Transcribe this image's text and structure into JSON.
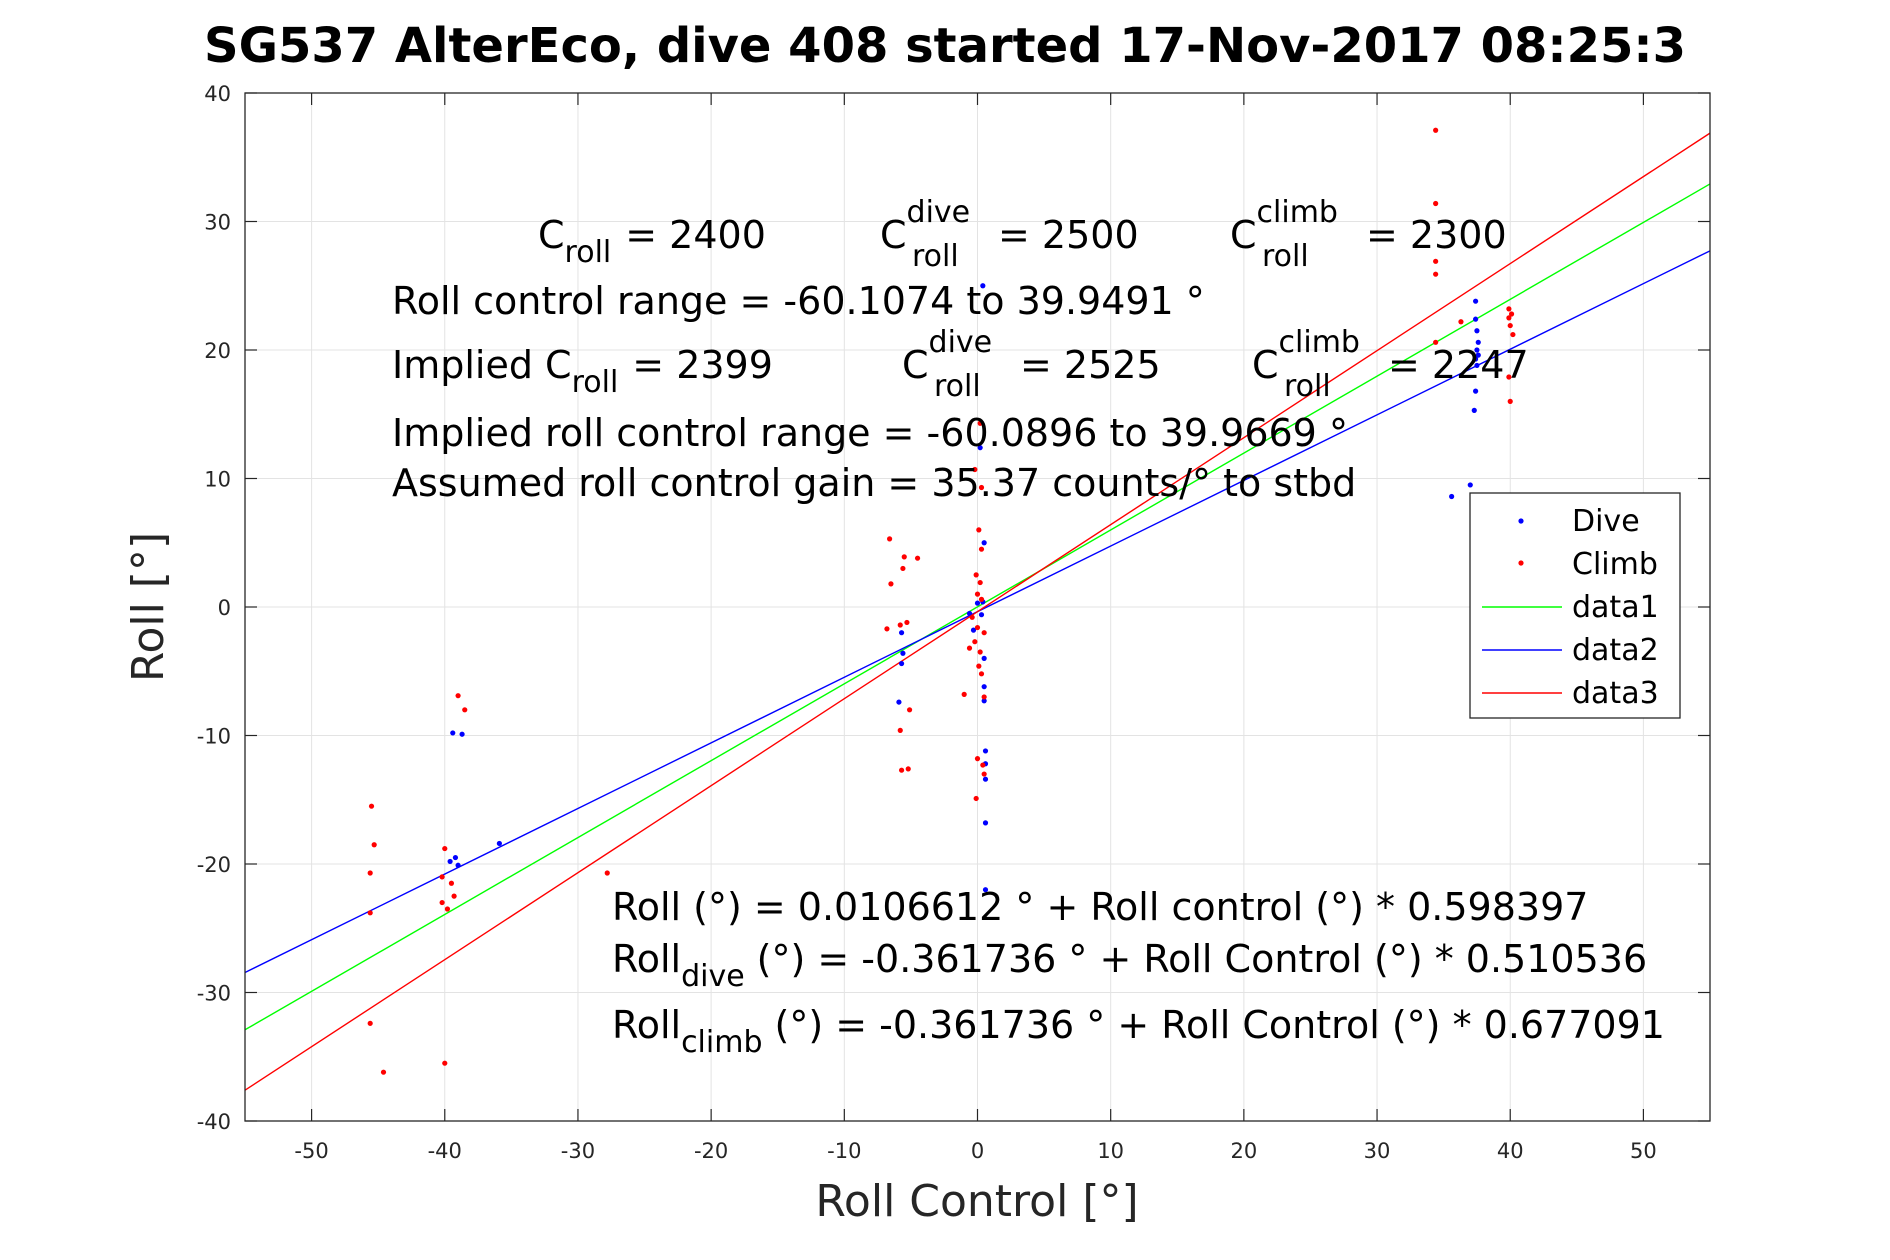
{
  "title": "SG537 AlterEco, dive 408 started 17-Nov-2017 08:25:3",
  "chart_data": {
    "type": "scatter",
    "xlabel": "Roll Control [°]",
    "ylabel": "Roll [°]",
    "xlim": [
      -55,
      55
    ],
    "ylim": [
      -40,
      40
    ],
    "xticks": [
      -50,
      -40,
      -30,
      -20,
      -10,
      0,
      10,
      20,
      30,
      40,
      50
    ],
    "yticks": [
      -40,
      -30,
      -20,
      -10,
      0,
      10,
      20,
      30,
      40
    ],
    "grid": true,
    "legend_position": "right",
    "colors": {
      "dive": "#0000ff",
      "climb": "#ff0000",
      "data1": "#00ff00",
      "data2": "#0000ff",
      "data3": "#ff0000"
    },
    "series": [
      {
        "name": "Dive",
        "kind": "points",
        "color": "#0000ff",
        "points": [
          [
            -39.6,
            -19.8
          ],
          [
            -39.2,
            -19.5
          ],
          [
            -39.0,
            -20.1
          ],
          [
            -39.4,
            -9.8
          ],
          [
            -38.7,
            -9.9
          ],
          [
            -35.9,
            -18.4
          ],
          [
            -5.7,
            -2.0
          ],
          [
            -5.6,
            -3.6
          ],
          [
            -5.7,
            -4.4
          ],
          [
            -5.9,
            -7.4
          ],
          [
            -0.6,
            -0.5
          ],
          [
            -0.3,
            -1.8
          ],
          [
            0.0,
            0.3
          ],
          [
            0.2,
            12.4
          ],
          [
            0.3,
            -0.6
          ],
          [
            0.4,
            0.4
          ],
          [
            0.5,
            -4.0
          ],
          [
            0.5,
            -6.2
          ],
          [
            0.5,
            -7.3
          ],
          [
            0.6,
            -11.2
          ],
          [
            0.6,
            -12.2
          ],
          [
            0.6,
            -13.4
          ],
          [
            0.6,
            -16.8
          ],
          [
            0.6,
            -22.0
          ],
          [
            0.4,
            25.0
          ],
          [
            0.5,
            5.0
          ],
          [
            37.4,
            23.8
          ],
          [
            37.4,
            22.4
          ],
          [
            37.5,
            21.5
          ],
          [
            37.6,
            20.6
          ],
          [
            37.5,
            20.0
          ],
          [
            37.6,
            19.6
          ],
          [
            37.4,
            19.3
          ],
          [
            37.5,
            18.8
          ],
          [
            37.4,
            16.8
          ],
          [
            37.3,
            15.3
          ],
          [
            37.0,
            9.5
          ],
          [
            35.6,
            8.6
          ]
        ]
      },
      {
        "name": "Climb",
        "kind": "points",
        "color": "#ff0000",
        "points": [
          [
            -45.5,
            -15.5
          ],
          [
            -45.3,
            -18.5
          ],
          [
            -45.6,
            -20.7
          ],
          [
            -45.6,
            -23.8
          ],
          [
            -45.6,
            -32.4
          ],
          [
            -44.6,
            -36.2
          ],
          [
            -40.0,
            -18.8
          ],
          [
            -40.2,
            -21.0
          ],
          [
            -39.5,
            -21.5
          ],
          [
            -39.3,
            -22.5
          ],
          [
            -40.2,
            -23.0
          ],
          [
            -39.8,
            -23.5
          ],
          [
            -39.0,
            -6.9
          ],
          [
            -38.5,
            -8.0
          ],
          [
            -40.0,
            -35.5
          ],
          [
            -27.8,
            -20.7
          ],
          [
            -6.6,
            5.3
          ],
          [
            -6.5,
            1.8
          ],
          [
            -6.8,
            -1.7
          ],
          [
            -5.5,
            3.9
          ],
          [
            -5.6,
            3.0
          ],
          [
            -5.8,
            -1.4
          ],
          [
            -5.3,
            -1.2
          ],
          [
            -5.8,
            -9.6
          ],
          [
            -5.7,
            -12.7
          ],
          [
            -5.2,
            -12.6
          ],
          [
            -4.5,
            3.8
          ],
          [
            -5.1,
            -8.0
          ],
          [
            0.2,
            14.3
          ],
          [
            -0.2,
            10.7
          ],
          [
            0.3,
            9.3
          ],
          [
            0.1,
            6.0
          ],
          [
            0.3,
            4.5
          ],
          [
            -0.1,
            2.5
          ],
          [
            0.2,
            1.9
          ],
          [
            0.0,
            1.0
          ],
          [
            0.3,
            0.6
          ],
          [
            -0.4,
            -0.8
          ],
          [
            0.0,
            -1.6
          ],
          [
            0.5,
            -2.0
          ],
          [
            -0.2,
            -2.7
          ],
          [
            -0.6,
            -3.2
          ],
          [
            0.2,
            -3.5
          ],
          [
            0.1,
            -4.6
          ],
          [
            0.3,
            -5.2
          ],
          [
            -1.0,
            -6.8
          ],
          [
            0.5,
            -7.0
          ],
          [
            0.0,
            -11.8
          ],
          [
            0.4,
            -12.3
          ],
          [
            -0.1,
            -14.9
          ],
          [
            0.5,
            -13.0
          ],
          [
            34.4,
            37.1
          ],
          [
            34.4,
            31.4
          ],
          [
            34.4,
            26.9
          ],
          [
            34.4,
            25.9
          ],
          [
            34.4,
            20.6
          ],
          [
            36.3,
            22.2
          ],
          [
            39.9,
            23.2
          ],
          [
            40.1,
            22.8
          ],
          [
            39.9,
            22.5
          ],
          [
            40.0,
            21.9
          ],
          [
            40.2,
            21.2
          ],
          [
            39.9,
            17.9
          ],
          [
            40.0,
            16.0
          ]
        ]
      },
      {
        "name": "data1",
        "kind": "line",
        "color": "#00ff00",
        "intercept": 0.0106612,
        "slope": 0.598397
      },
      {
        "name": "data2",
        "kind": "line",
        "color": "#0000ff",
        "intercept": -0.361736,
        "slope": 0.510536
      },
      {
        "name": "data3",
        "kind": "line",
        "color": "#ff0000",
        "intercept": -0.361736,
        "slope": 0.677091
      }
    ],
    "annotations": {
      "c_roll": "C",
      "c_roll_sub": "roll",
      "c_roll_val": "= 2400",
      "c_dive": "C",
      "c_dive_sup": "dive",
      "c_dive_sub": "roll",
      "c_dive_val": "= 2500",
      "c_climb": "C",
      "c_climb_sup": "climb",
      "c_climb_sub": "roll",
      "c_climb_val": "= 2300",
      "range": "Roll control range = -60.1074 to 39.9491 °",
      "implied_prefix": "Implied C",
      "implied_sub": "roll",
      "implied_val": "= 2399",
      "implied_dive": "C",
      "implied_dive_sup": "dive",
      "implied_dive_sub": "roll",
      "implied_dive_val": "= 2525",
      "implied_climb": "C",
      "implied_climb_sup": "climb",
      "implied_climb_sub": "roll",
      "implied_climb_val": "= 2247",
      "implied_range": "Implied roll control range = -60.0896 to 39.9669 °",
      "gain": "Assumed roll control gain = 35.37 counts/° to stbd",
      "eq1": "Roll (°) = 0.0106612 ° + Roll control (°) * 0.598397",
      "eq2_prefix": "Roll",
      "eq2_sub": "dive",
      "eq2_rest": "(°) = -0.361736 ° + Roll Control (°) * 0.510536",
      "eq3_prefix": "Roll",
      "eq3_sub": "climb",
      "eq3_rest": "(°) = -0.361736 ° + Roll Control (°) * 0.677091"
    }
  }
}
